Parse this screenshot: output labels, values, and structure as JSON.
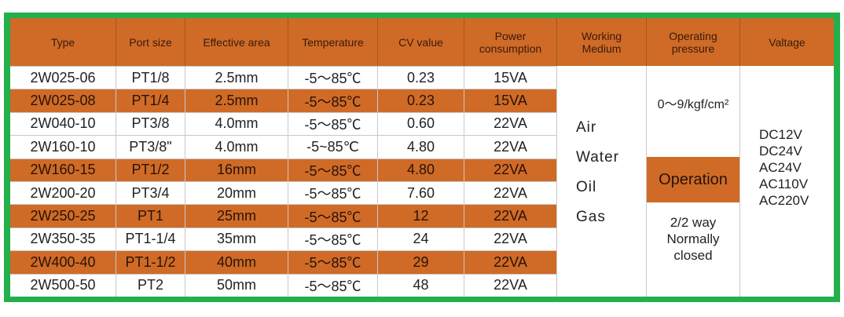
{
  "headers": [
    "Type",
    "Port size",
    "Effective area",
    "Temperature",
    "CV value",
    "Power consumption",
    "Working Medium",
    "Operating pressure",
    "Valtage"
  ],
  "rows": [
    [
      "2W025-06",
      "PT1/8",
      "2.5mm",
      "-5～85℃",
      "0.23",
      "15VA"
    ],
    [
      "2W025-08",
      "PT1/4",
      "2.5mm",
      "-5～85℃",
      "0.23",
      "15VA"
    ],
    [
      "2W040-10",
      "PT3/8",
      "4.0mm",
      "-5～85℃",
      "0.60",
      "22VA"
    ],
    [
      "2W160-10",
      "PT3/8\"",
      "4.0mm",
      "-5~85℃",
      "4.80",
      "22VA"
    ],
    [
      "2W160-15",
      "PT1/2",
      "16mm",
      "-5～85℃",
      "4.80",
      "22VA"
    ],
    [
      "2W200-20",
      "PT3/4",
      "20mm",
      "-5～85℃",
      "7.60",
      "22VA"
    ],
    [
      "2W250-25",
      "PT1",
      "25mm",
      "-5～85℃",
      "12",
      "22VA"
    ],
    [
      "2W350-35",
      "PT1-1/4",
      "35mm",
      "-5～85℃",
      "24",
      "22VA"
    ],
    [
      "2W400-40",
      "PT1-1/2",
      "40mm",
      "-5～85℃",
      "29",
      "22VA"
    ],
    [
      "2W500-50",
      "PT2",
      "50mm",
      "-5～85℃",
      "48",
      "22VA"
    ]
  ],
  "highlighted_rows": [
    1,
    4,
    6,
    8
  ],
  "media": [
    "Air",
    "Water",
    "Oil",
    "Gas"
  ],
  "pressure": "0～9/kgf/cm²",
  "operation_label": "Operation",
  "operation_lines": [
    "2/2 way",
    "Normally",
    "closed"
  ],
  "voltages": [
    "DC12V",
    "DC24V",
    "AC24V",
    "AC110V",
    "AC220V"
  ],
  "colors": {
    "frame": "#22b04b",
    "header": "#cf6b27"
  }
}
